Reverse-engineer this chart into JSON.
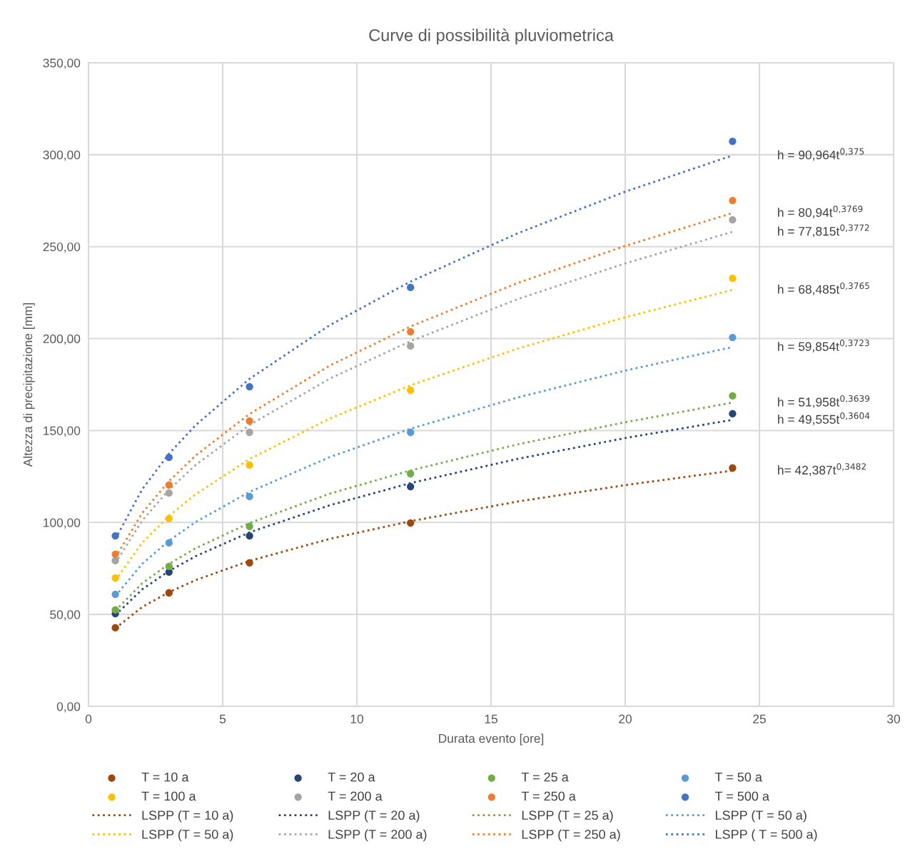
{
  "chart_data": {
    "type": "scatter",
    "title": "Curve di possibilità pluviometrica",
    "xlabel": "Durata evento [ore]",
    "ylabel": "Altezza di precipitazione [mm]",
    "xlim": [
      0,
      30
    ],
    "xticks": [
      0,
      5,
      10,
      15,
      20,
      25,
      30
    ],
    "ylim": [
      0,
      350
    ],
    "yticks": [
      {
        "value": 0,
        "label": "0,00"
      },
      {
        "value": 50,
        "label": "50,00"
      },
      {
        "value": 100,
        "label": "100,00"
      },
      {
        "value": 150,
        "label": "150,00"
      },
      {
        "value": 200,
        "label": "200,00"
      },
      {
        "value": 250,
        "label": "250,00"
      },
      {
        "value": 300,
        "label": "300,00"
      },
      {
        "value": 350,
        "label": "350,00"
      }
    ],
    "grid": true,
    "legend": "bottom",
    "marker": "circle",
    "x": [
      1,
      3,
      6,
      12,
      24
    ],
    "series": [
      {
        "name": "T = 10 a",
        "color": "#9e480e",
        "values": [
          42.7,
          61.7,
          78.0,
          99.7,
          129.6
        ]
      },
      {
        "name": "T = 20 a",
        "color": "#264478",
        "values": [
          50.4,
          73.0,
          92.7,
          119.5,
          159.1
        ]
      },
      {
        "name": "T = 25 a",
        "color": "#70ad47",
        "values": [
          52.4,
          76.1,
          97.8,
          126.5,
          168.8
        ]
      },
      {
        "name": "T = 50 a",
        "color": "#5b9bd5",
        "values": [
          60.9,
          88.9,
          114.1,
          149.0,
          200.6
        ]
      },
      {
        "name": "T = 100 a",
        "color": "#ffc000",
        "values": [
          69.8,
          102.1,
          131.2,
          171.9,
          232.8
        ]
      },
      {
        "name": "T = 200 a",
        "color": "#a5a5a5",
        "values": [
          79.2,
          116.0,
          149.0,
          196.0,
          264.6
        ]
      },
      {
        "name": "T = 250 a",
        "color": "#ed7d31",
        "values": [
          82.7,
          120.3,
          155.2,
          203.7,
          275.1
        ]
      },
      {
        "name": "T = 500 a",
        "color": "#4472c4",
        "values": [
          92.7,
          135.4,
          173.8,
          227.8,
          307.3
        ]
      },
      {
        "name": "LSPP (T = 10 a)",
        "type": "line",
        "line_style": "dotted",
        "marker": "none",
        "color": "#9e480e",
        "x": [
          1,
          2,
          3,
          4,
          6,
          9,
          12,
          16,
          20,
          24
        ],
        "values": [
          42.4,
          54.0,
          62.1,
          68.7,
          79.1,
          91.1,
          100.7,
          111.4,
          120.3,
          128.2
        ]
      },
      {
        "name": "LSPP (T = 20 a)",
        "type": "line",
        "line_style": "dotted",
        "marker": "none",
        "color": "#264478",
        "x": [
          1,
          2,
          3,
          4,
          6,
          9,
          12,
          16,
          20,
          24
        ],
        "values": [
          49.6,
          63.6,
          73.6,
          81.7,
          94.6,
          109.4,
          121.4,
          134.6,
          145.9,
          155.8
        ]
      },
      {
        "name": "LSPP (T = 25 a)",
        "type": "line",
        "line_style": "dotted",
        "marker": "none",
        "color": "#70ad47",
        "x": [
          1,
          2,
          3,
          4,
          6,
          9,
          12,
          16,
          20,
          24
        ],
        "values": [
          52.0,
          66.9,
          77.5,
          86.0,
          99.7,
          115.7,
          128.3,
          142.5,
          154.5,
          165.2
        ]
      },
      {
        "name": "LSPP (T = 50 a)",
        "type": "line",
        "line_style": "dotted",
        "marker": "none",
        "color": "#5b9bd5",
        "x": [
          1,
          2,
          3,
          4,
          6,
          9,
          12,
          16,
          20,
          24
        ],
        "values": [
          59.9,
          77.5,
          90.1,
          100.3,
          116.6,
          135.6,
          151.0,
          168.0,
          182.6,
          195.4
        ]
      },
      {
        "name": "LSPP (T = 50 a)",
        "type": "line",
        "line_style": "dotted",
        "marker": "none",
        "color": "#ffc000",
        "x": [
          1,
          2,
          3,
          4,
          6,
          9,
          12,
          16,
          20,
          24
        ],
        "values": [
          68.5,
          88.9,
          103.6,
          115.4,
          134.5,
          156.6,
          174.6,
          194.6,
          211.6,
          226.5
        ]
      },
      {
        "name": "LSPP (T = 200 a)",
        "type": "line",
        "line_style": "dotted",
        "marker": "none",
        "color": "#a5a5a5",
        "x": [
          1,
          2,
          3,
          4,
          6,
          9,
          12,
          16,
          20,
          24
        ],
        "values": [
          77.8,
          101.0,
          117.8,
          131.3,
          153.0,
          178.3,
          198.6,
          221.5,
          240.9,
          258.1
        ]
      },
      {
        "name": "LSPP (T = 250 a)",
        "type": "line",
        "line_style": "dotted",
        "marker": "none",
        "color": "#ed7d31",
        "x": [
          1,
          2,
          3,
          4,
          6,
          9,
          12,
          16,
          20,
          24
        ],
        "values": [
          80.9,
          105.1,
          122.5,
          136.5,
          159.0,
          185.4,
          206.6,
          230.3,
          250.4,
          268.3
        ]
      },
      {
        "name": "LSPP ( T = 500 a)",
        "type": "line",
        "line_style": "dotted",
        "marker": "none",
        "color": "#4472c4",
        "x": [
          1,
          2,
          3,
          4,
          6,
          9,
          12,
          16,
          20,
          24
        ],
        "values": [
          91.0,
          118.0,
          137.4,
          153.0,
          178.1,
          207.4,
          231.0,
          257.3,
          279.9,
          299.6
        ]
      }
    ],
    "annotations": [
      "h = 90,964t$^{0,375}$",
      "h = 80,94t$^{0,3769}$",
      "h = 77,815t$^{0,3772}$",
      "h = 68,485t$^{0,3765}$",
      "h = 59,854t$^{0,3723}$",
      "h = 51,958t$^{0,3639}$",
      "h = 49,555t$^{0,3604}$",
      "h= 42,387t$^{0,3482}$"
    ]
  }
}
